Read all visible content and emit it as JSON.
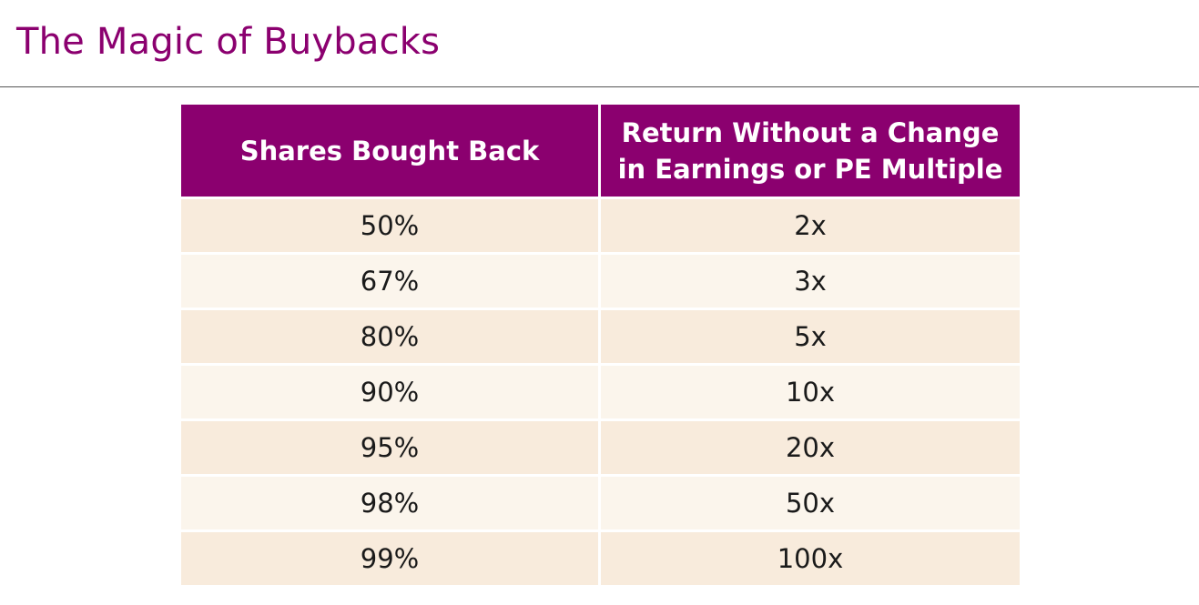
{
  "slide": {
    "title": "The Magic of Buybacks"
  },
  "table": {
    "headers": {
      "shares": "Shares Bought Back",
      "return": "Return Without a Change in Earnings or PE Multiple"
    },
    "rows": [
      {
        "shares": "50%",
        "return": "2x"
      },
      {
        "shares": "67%",
        "return": "3x"
      },
      {
        "shares": "80%",
        "return": "5x"
      },
      {
        "shares": "90%",
        "return": "10x"
      },
      {
        "shares": "95%",
        "return": "20x"
      },
      {
        "shares": "98%",
        "return": "50x"
      },
      {
        "shares": "99%",
        "return": "100x"
      }
    ]
  },
  "colors": {
    "brand": "#8b006f",
    "row_odd": "#f8ebdc",
    "row_even": "#fbf5ec"
  }
}
